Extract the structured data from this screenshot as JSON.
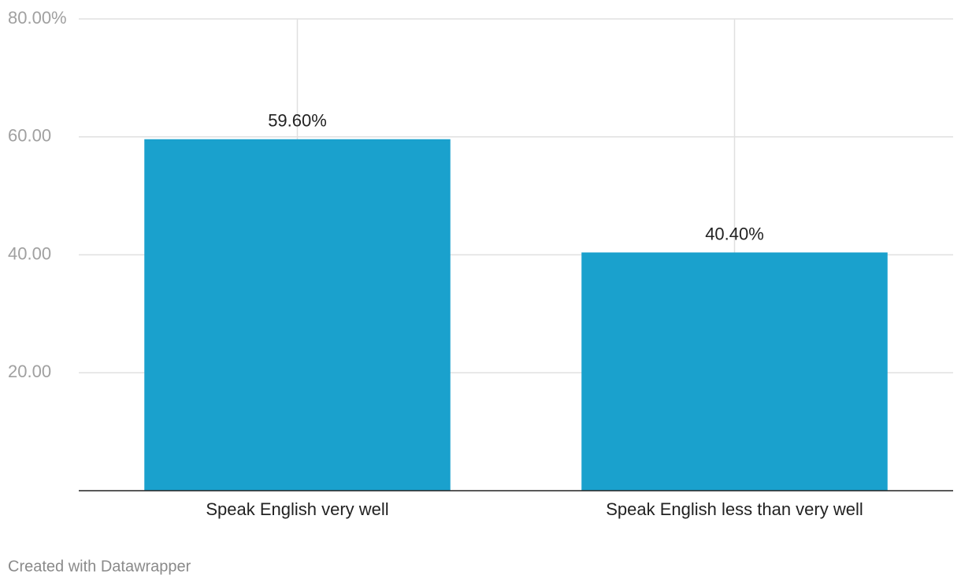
{
  "chart_data": {
    "type": "bar",
    "categories": [
      "Speak English very well",
      "Speak English less than very well"
    ],
    "values": [
      59.6,
      40.4
    ],
    "value_labels": [
      "59.60%",
      "40.40%"
    ],
    "color": "#1aa1cd",
    "ylim": [
      0,
      80
    ],
    "yticks": [
      {
        "value": 20,
        "label": "20.00"
      },
      {
        "value": 40,
        "label": "40.00"
      },
      {
        "value": 60,
        "label": "60.00"
      },
      {
        "value": 80,
        "label": "80.00%"
      }
    ],
    "grid": true,
    "footer": "Created with Datawrapper"
  }
}
